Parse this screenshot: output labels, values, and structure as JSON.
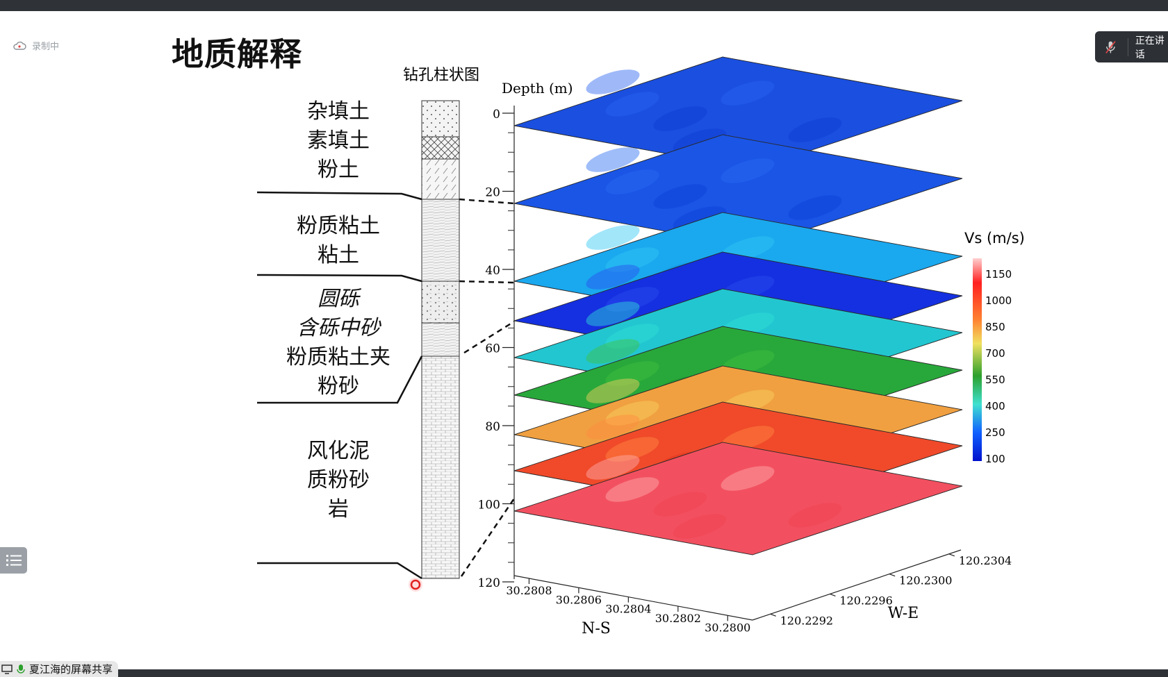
{
  "recording": {
    "label": "录制中"
  },
  "speaking": {
    "label": "正在讲话"
  },
  "slide": {
    "title": "地质解释",
    "borehole_title": "钻孔柱状图",
    "depth_axis_label": "Depth (m)",
    "depth_ticks": [
      "0",
      "20",
      "40",
      "60",
      "80",
      "100",
      "120"
    ],
    "strata_lines": [
      [
        "杂填土",
        "素填土",
        "粉土"
      ],
      [
        "粉质粘土",
        "粘土"
      ],
      [
        "圆砾",
        "含砾中砂",
        "粉质粘土夹",
        "粉砂"
      ],
      [
        "风化泥",
        "质粉砂",
        "岩"
      ]
    ],
    "ns_label": "N-S",
    "ns_ticks": [
      "30.2808",
      "30.2806",
      "30.2804",
      "30.2802",
      "30.2800"
    ],
    "we_label": "W-E",
    "we_ticks": [
      "120.2292",
      "120.2296",
      "120.2300",
      "120.2304"
    ],
    "colorbar_label": "Vs (m/s)",
    "colorbar_ticks": [
      "1150",
      "1000",
      "850",
      "700",
      "550",
      "400",
      "250",
      "100"
    ],
    "slice_colors": [
      "#1a4fe0",
      "#1a55e6",
      "#1aa8ef",
      "#1530e0",
      "#22c6d0",
      "#28a83a",
      "#f0a040",
      "#f04a2a",
      "#f25060"
    ],
    "colorbar_colors": [
      "#ffd0d0",
      "#ff2020",
      "#ff8030",
      "#f0e060",
      "#2ca02c",
      "#40e0d0",
      "#1060ff",
      "#0010cc"
    ]
  },
  "share_bar": {
    "label": "夏江海的屏幕共享"
  }
}
